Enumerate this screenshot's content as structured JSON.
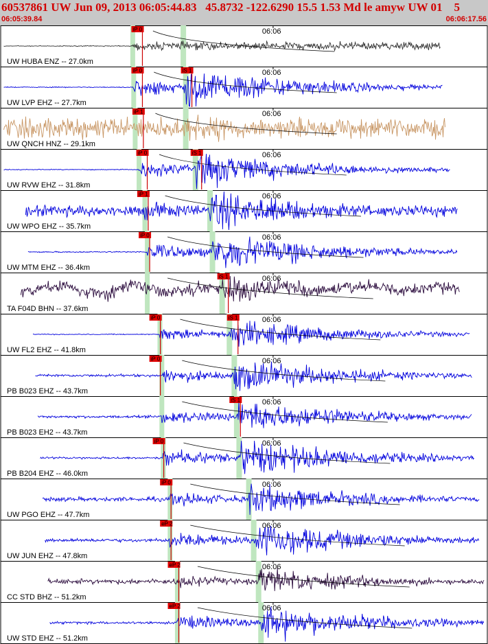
{
  "header": {
    "title": "60537861 UW Jun 09, 2013 06:05:44.83   45.8732 -122.6290 15.5 1.53 Md le amyw UW 01    5",
    "start_time": "06:05:39.84",
    "end_time": "06:06:17.56"
  },
  "chart_data": {
    "type": "line",
    "title": "60537861 UW Jun 09, 2013 06:05:44.83   45.8732 -122.6290 15.5 1.53 Md le amyw UW 01    5",
    "x_range": [
      "06:05:39.84",
      "06:06:17.56"
    ],
    "time_tick_label": "06:06",
    "series": [
      {
        "name": "UW HUBA ENZ -- 27.0km",
        "color": "#333333",
        "amp": 0.15,
        "noise": 0.02,
        "p_frac": 0.27,
        "s_frac": 0.375,
        "end_frac": 0.905,
        "style": "burst",
        "picks": [
          {
            "label": "iP 0",
            "frac": 0.268
          }
        ]
      },
      {
        "name": "UW LVP EHZ -- 27.7km",
        "color": "#0000dd",
        "amp": 0.95,
        "noise": 0.02,
        "p_frac": 0.272,
        "s_frac": 0.38,
        "end_frac": 0.91,
        "style": "event",
        "picks": [
          {
            "label": "iP 0",
            "frac": 0.268
          },
          {
            "label": "iS 1",
            "frac": 0.37
          }
        ]
      },
      {
        "name": "UW QNCH HNZ -- 29.1km",
        "color": "#c89664",
        "amp": 0.7,
        "noise": 0.45,
        "p_frac": 0.275,
        "s_frac": 0.38,
        "end_frac": 0.915,
        "style": "noisy",
        "picks": [
          {
            "label": "iP 1",
            "frac": 0.27
          }
        ]
      },
      {
        "name": "UW RVW EHZ -- 31.8km",
        "color": "#0000dd",
        "amp": 0.85,
        "noise": 0.02,
        "p_frac": 0.283,
        "s_frac": 0.4,
        "end_frac": 0.925,
        "style": "event",
        "picks": [
          {
            "label": "iP 0",
            "frac": 0.278
          },
          {
            "label": "iS 1",
            "frac": 0.39
          }
        ]
      },
      {
        "name": "UW WPO EHZ -- 35.7km",
        "color": "#0000dd",
        "amp": 0.95,
        "noise": 0.25,
        "p_frac": 0.295,
        "s_frac": 0.43,
        "end_frac": 0.94,
        "style": "noisy-event",
        "picks": [
          {
            "label": "iP 1",
            "frac": 0.28
          }
        ]
      },
      {
        "name": "UW MTM EHZ -- 36.4km",
        "color": "#0000dd",
        "amp": 0.9,
        "noise": 0.03,
        "p_frac": 0.3,
        "s_frac": 0.435,
        "end_frac": 0.94,
        "style": "event",
        "picks": [
          {
            "label": "iP 0",
            "frac": 0.283
          }
        ]
      },
      {
        "name": "TA F04D BHN -- 37.6km",
        "color": "#2a0a3c",
        "amp": 0.75,
        "noise": 0.3,
        "p_frac": 0.3,
        "s_frac": 0.455,
        "end_frac": 0.945,
        "style": "longperiod",
        "picks": [
          {
            "label": "iS 1",
            "frac": 0.445
          }
        ]
      },
      {
        "name": "UW FL2 EHZ -- 41.8km",
        "color": "#0000dd",
        "amp": 0.7,
        "noise": 0.02,
        "p_frac": 0.326,
        "s_frac": 0.47,
        "end_frac": 0.965,
        "style": "event",
        "picks": [
          {
            "label": "iP 0",
            "frac": 0.305
          },
          {
            "label": "iS 1",
            "frac": 0.465
          }
        ]
      },
      {
        "name": "PB B023 EHZ -- 43.7km",
        "color": "#0000dd",
        "amp": 0.8,
        "noise": 0.06,
        "p_frac": 0.33,
        "s_frac": 0.48,
        "end_frac": 0.97,
        "style": "event",
        "picks": [
          {
            "label": "iP 0",
            "frac": 0.305
          }
        ]
      },
      {
        "name": "PB B023 EH2 -- 43.7km",
        "color": "#0000dd",
        "amp": 0.8,
        "noise": 0.06,
        "p_frac": 0.33,
        "s_frac": 0.485,
        "end_frac": 0.97,
        "style": "event",
        "picks": [
          {
            "label": "iS 1",
            "frac": 0.47
          }
        ]
      },
      {
        "name": "PB B204 EHZ -- 46.0km",
        "color": "#0000dd",
        "amp": 0.9,
        "noise": 0.05,
        "p_frac": 0.333,
        "s_frac": 0.49,
        "end_frac": 0.975,
        "style": "event",
        "picks": [
          {
            "label": "iP 0",
            "frac": 0.312
          }
        ]
      },
      {
        "name": "UW PGO EHZ -- 47.7km",
        "color": "#0000dd",
        "amp": 0.75,
        "noise": 0.1,
        "p_frac": 0.347,
        "s_frac": 0.51,
        "end_frac": 0.985,
        "style": "event",
        "picks": [
          {
            "label": "iP 0",
            "frac": 0.327
          }
        ]
      },
      {
        "name": "UW JUN EHZ -- 47.8km",
        "color": "#0000dd",
        "amp": 0.9,
        "noise": 0.08,
        "p_frac": 0.347,
        "s_frac": 0.52,
        "end_frac": 0.985,
        "style": "event",
        "picks": [
          {
            "label": "eP 2",
            "frac": 0.327
          }
        ]
      },
      {
        "name": "CC STD BHZ -- 51.2km",
        "color": "#2a0a3c",
        "amp": 0.65,
        "noise": 0.12,
        "p_frac": 0.362,
        "s_frac": 0.53,
        "end_frac": 0.995,
        "style": "event",
        "picks": [
          {
            "label": "eP 2",
            "frac": 0.343
          }
        ]
      },
      {
        "name": "UW STD EHZ -- 51.2km",
        "color": "#0000dd",
        "amp": 0.85,
        "noise": 0.06,
        "p_frac": 0.362,
        "s_frac": 0.535,
        "end_frac": 0.995,
        "style": "event",
        "picks": [
          {
            "label": "eP 2",
            "frac": 0.343
          }
        ]
      }
    ],
    "grid": false,
    "legend": "none"
  }
}
